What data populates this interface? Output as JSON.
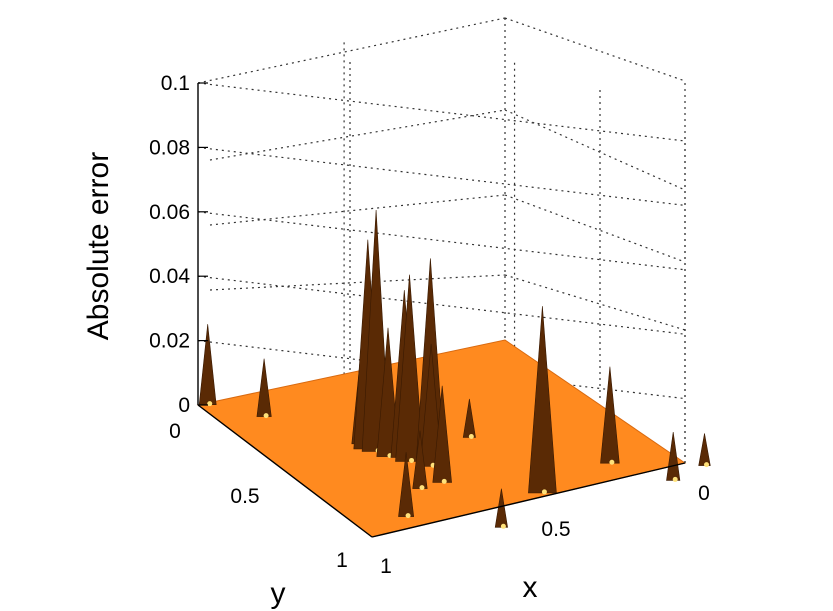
{
  "chart_data": {
    "type": "surface",
    "zlabel": "Absolute error",
    "xlabel": "x",
    "ylabel": "y",
    "xlim": [
      0,
      1
    ],
    "ylim": [
      0,
      1
    ],
    "zlim": [
      0,
      0.1
    ],
    "x_ticks": [
      "0",
      "0.5",
      "1"
    ],
    "y_ticks": [
      "0",
      "0.5",
      "1"
    ],
    "z_ticks": [
      "0",
      "0.02",
      "0.04",
      "0.06",
      "0.08",
      "0.1"
    ],
    "grid": true,
    "colormap": "copper",
    "surface_color": "#ff8a1f",
    "peak_color": "#5a2a05",
    "highlight_color": "#ffe27a",
    "peaks": [
      {
        "x": 0.0,
        "y": 0.02,
        "z": 0.025
      },
      {
        "x": 0.1,
        "y": 0.1,
        "z": 0.018
      },
      {
        "x": 0.3,
        "y": 0.45,
        "z": 0.012
      },
      {
        "x": 0.4,
        "y": 0.32,
        "z": 0.016
      },
      {
        "x": 0.32,
        "y": 0.22,
        "z": 0.028
      },
      {
        "x": 0.36,
        "y": 0.22,
        "z": 0.065
      },
      {
        "x": 0.38,
        "y": 0.23,
        "z": 0.075
      },
      {
        "x": 0.42,
        "y": 0.24,
        "z": 0.04
      },
      {
        "x": 0.43,
        "y": 0.27,
        "z": 0.052
      },
      {
        "x": 0.46,
        "y": 0.27,
        "z": 0.058
      },
      {
        "x": 0.44,
        "y": 0.32,
        "z": 0.062
      },
      {
        "x": 0.5,
        "y": 0.3,
        "z": 0.038
      },
      {
        "x": 0.62,
        "y": 0.28,
        "z": 0.03
      },
      {
        "x": 0.66,
        "y": 0.22,
        "z": 0.018
      },
      {
        "x": 0.72,
        "y": 0.45,
        "z": 0.058
      },
      {
        "x": 0.52,
        "y": 0.66,
        "z": 0.03
      },
      {
        "x": 0.66,
        "y": 0.74,
        "z": 0.015
      },
      {
        "x": 0.86,
        "y": 0.12,
        "z": 0.02
      },
      {
        "x": 0.96,
        "y": 0.28,
        "z": 0.012
      },
      {
        "x": 0.56,
        "y": 0.84,
        "z": 0.01
      }
    ]
  }
}
